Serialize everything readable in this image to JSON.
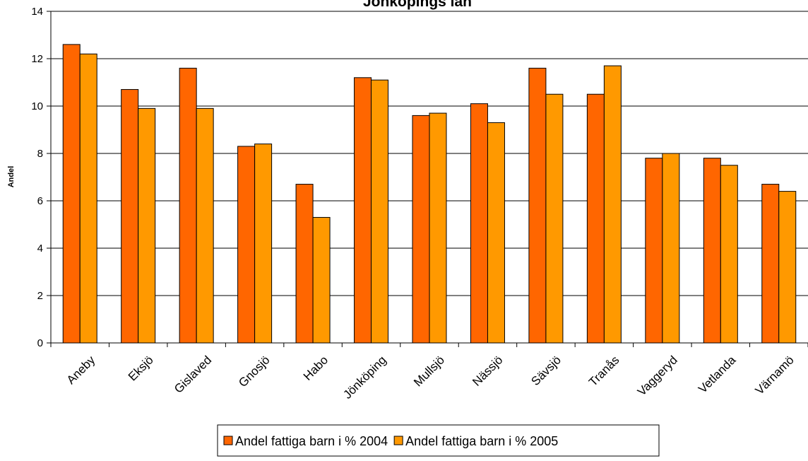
{
  "chart_data": {
    "type": "bar",
    "title": "Jönköpings län",
    "xlabel": "",
    "ylabel": "Andel",
    "ylim": [
      0,
      14
    ],
    "yticks": [
      0,
      2,
      4,
      6,
      8,
      10,
      12,
      14
    ],
    "grid": true,
    "legend_position": "bottom",
    "categories": [
      "Aneby",
      "Eksjö",
      "Gislaved",
      "Gnosjö",
      "Habo",
      "Jönköping",
      "Mullsjö",
      "Nässjö",
      "Sävsjö",
      "Tranås",
      "Vaggeryd",
      "Vetlanda",
      "Värnamö"
    ],
    "series": [
      {
        "name": "Andel fattiga barn i % 2004",
        "color": "#FF6600",
        "values": [
          12.6,
          10.7,
          11.6,
          8.3,
          6.7,
          11.2,
          9.6,
          10.1,
          11.6,
          10.5,
          7.8,
          7.8,
          6.7
        ]
      },
      {
        "name": "Andel fattiga barn i % 2005",
        "color": "#FF9900",
        "values": [
          12.2,
          9.9,
          9.9,
          8.4,
          5.3,
          11.1,
          9.7,
          9.3,
          10.5,
          11.7,
          8.0,
          7.5,
          6.4
        ]
      }
    ]
  }
}
